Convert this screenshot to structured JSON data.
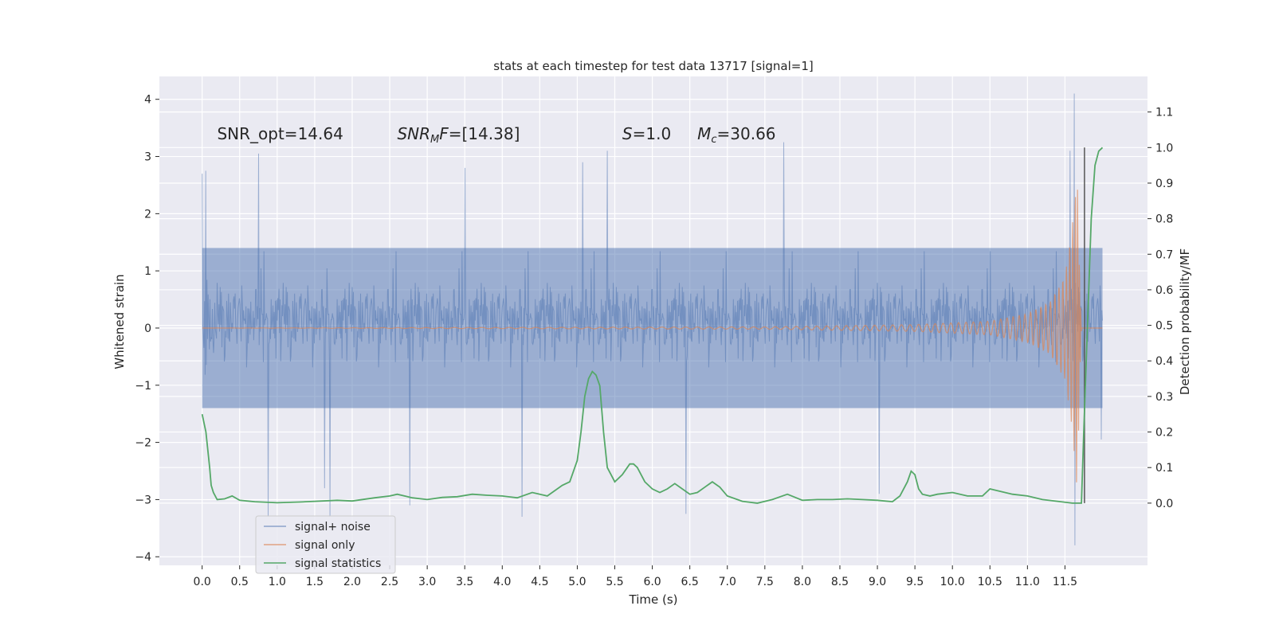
{
  "chart_data": {
    "type": "line",
    "title": "stats at each timestep for test data 13717 [signal=1]",
    "xlabel": "Time (s)",
    "ylabel": "Whitened strain",
    "y2label": "Detection probability/MF",
    "xlim": [
      -0.57,
      12.6
    ],
    "ylim": [
      -4.15,
      4.4
    ],
    "y2lim": [
      -0.175,
      1.2
    ],
    "xticks": [
      0.0,
      0.5,
      1.0,
      1.5,
      2.0,
      2.5,
      3.0,
      3.5,
      4.0,
      4.5,
      5.0,
      5.5,
      6.0,
      6.5,
      7.0,
      7.5,
      8.0,
      8.5,
      9.0,
      9.5,
      10.0,
      10.5,
      11.0,
      11.5
    ],
    "xtick_labels": [
      "0.0",
      "0.5",
      "1.0",
      "1.5",
      "2.0",
      "2.5",
      "3.0",
      "3.5",
      "4.0",
      "4.5",
      "5.0",
      "5.5",
      "6.0",
      "6.5",
      "7.0",
      "7.5",
      "8.0",
      "8.5",
      "9.0",
      "9.5",
      "10.0",
      "10.5",
      "11.0",
      "11.5"
    ],
    "yticks": [
      -4,
      -3,
      -2,
      -1,
      0,
      1,
      2,
      3,
      4
    ],
    "ytick_labels": [
      "−4",
      "−3",
      "−2",
      "−1",
      "0",
      "1",
      "2",
      "3",
      "4"
    ],
    "y2ticks": [
      0.0,
      0.1,
      0.2,
      0.3,
      0.4,
      0.5,
      0.6,
      0.7,
      0.8,
      0.9,
      1.0,
      1.1
    ],
    "y2tick_labels": [
      "0.0",
      "0.1",
      "0.2",
      "0.3",
      "0.4",
      "0.5",
      "0.6",
      "0.7",
      "0.8",
      "0.9",
      "1.0",
      "1.1"
    ],
    "grid": true,
    "legend_position": "lower-left",
    "annotations": [
      {
        "id": "snr-opt",
        "x": 0.2,
        "y": 3.3,
        "parts": [
          {
            "t": "SNR_opt=14.64",
            "s": "normal"
          }
        ]
      },
      {
        "id": "snr-mf",
        "x": 2.6,
        "y": 3.3,
        "parts": [
          {
            "t": "SNR",
            "s": "italic"
          },
          {
            "t": "M",
            "s": "italic-sub"
          },
          {
            "t": "F",
            "s": "italic"
          },
          {
            "t": "=[14.38]",
            "s": "normal"
          }
        ]
      },
      {
        "id": "s-value",
        "x": 5.6,
        "y": 3.3,
        "parts": [
          {
            "t": "S",
            "s": "italic"
          },
          {
            "t": "=1.0",
            "s": "normal"
          }
        ]
      },
      {
        "id": "mc-value",
        "x": 6.6,
        "y": 3.3,
        "parts": [
          {
            "t": "M",
            "s": "italic"
          },
          {
            "t": "c",
            "s": "italic-sub"
          },
          {
            "t": "=30.66",
            "s": "normal"
          }
        ]
      }
    ],
    "series": [
      {
        "name": "signal+ noise",
        "color": "#4c72b0",
        "axis": "left",
        "description_range": {
          "x": [
            0.0,
            12.0
          ],
          "typical_band": [
            -1.4,
            1.4
          ],
          "max": 4.1,
          "min": -3.8
        },
        "peaks": [
          {
            "x": 0.0,
            "y": 2.7
          },
          {
            "x": 0.05,
            "y": 2.75
          },
          {
            "x": 0.75,
            "y": 3.05
          },
          {
            "x": 0.88,
            "y": -3.3
          },
          {
            "x": 1.63,
            "y": -2.8
          },
          {
            "x": 1.7,
            "y": -3.3
          },
          {
            "x": 2.77,
            "y": -3.1
          },
          {
            "x": 3.5,
            "y": 2.8
          },
          {
            "x": 4.26,
            "y": -3.3
          },
          {
            "x": 5.07,
            "y": 2.9
          },
          {
            "x": 5.4,
            "y": 3.1
          },
          {
            "x": 6.45,
            "y": -3.25
          },
          {
            "x": 7.75,
            "y": 3.25
          },
          {
            "x": 9.02,
            "y": -2.9
          },
          {
            "x": 11.57,
            "y": 3.1
          },
          {
            "x": 11.62,
            "y": 4.1
          },
          {
            "x": 11.63,
            "y": -3.8
          },
          {
            "x": 11.98,
            "y": 2.2
          },
          {
            "x": 11.98,
            "y": -1.95
          }
        ]
      },
      {
        "name": "signal only",
        "color": "#dd8452",
        "axis": "left",
        "chirp_amplitude": [
          [
            0.0,
            0.0
          ],
          [
            7.5,
            0.02
          ],
          [
            8.5,
            0.04
          ],
          [
            9.5,
            0.06
          ],
          [
            10.5,
            0.12
          ],
          [
            11.0,
            0.25
          ],
          [
            11.3,
            0.45
          ],
          [
            11.5,
            0.9
          ],
          [
            11.6,
            1.8
          ],
          [
            11.66,
            2.8
          ],
          [
            11.72,
            0.0
          ],
          [
            12.0,
            0.0
          ]
        ]
      },
      {
        "name": "signal statistics",
        "color": "#55a868",
        "axis": "right",
        "x": [
          0.0,
          0.05,
          0.1,
          0.12,
          0.15,
          0.2,
          0.3,
          0.4,
          0.5,
          0.7,
          1.0,
          1.3,
          1.5,
          1.8,
          2.0,
          2.3,
          2.5,
          2.6,
          2.8,
          3.0,
          3.2,
          3.4,
          3.6,
          3.8,
          4.0,
          4.2,
          4.4,
          4.6,
          4.8,
          4.9,
          5.0,
          5.05,
          5.1,
          5.15,
          5.2,
          5.25,
          5.3,
          5.35,
          5.4,
          5.5,
          5.6,
          5.7,
          5.75,
          5.8,
          5.9,
          6.0,
          6.1,
          6.2,
          6.3,
          6.4,
          6.5,
          6.6,
          6.7,
          6.8,
          6.9,
          7.0,
          7.2,
          7.4,
          7.6,
          7.8,
          8.0,
          8.2,
          8.4,
          8.6,
          8.8,
          9.0,
          9.2,
          9.3,
          9.4,
          9.45,
          9.5,
          9.55,
          9.6,
          9.7,
          9.8,
          10.0,
          10.2,
          10.4,
          10.5,
          10.6,
          10.8,
          11.0,
          11.2,
          11.4,
          11.6,
          11.7,
          11.72,
          11.75,
          11.8,
          11.85,
          11.9,
          11.95,
          12.0
        ],
        "values": [
          0.25,
          0.2,
          0.1,
          0.05,
          0.03,
          0.01,
          0.012,
          0.02,
          0.008,
          0.004,
          0.001,
          0.003,
          0.005,
          0.008,
          0.006,
          0.015,
          0.02,
          0.025,
          0.015,
          0.01,
          0.016,
          0.018,
          0.025,
          0.022,
          0.02,
          0.015,
          0.03,
          0.02,
          0.05,
          0.06,
          0.12,
          0.2,
          0.3,
          0.35,
          0.37,
          0.36,
          0.33,
          0.2,
          0.1,
          0.06,
          0.08,
          0.11,
          0.11,
          0.1,
          0.06,
          0.04,
          0.03,
          0.04,
          0.055,
          0.04,
          0.025,
          0.03,
          0.045,
          0.06,
          0.045,
          0.02,
          0.005,
          0.0,
          0.01,
          0.025,
          0.008,
          0.01,
          0.01,
          0.012,
          0.01,
          0.008,
          0.004,
          0.02,
          0.06,
          0.09,
          0.08,
          0.04,
          0.025,
          0.02,
          0.025,
          0.03,
          0.02,
          0.02,
          0.04,
          0.035,
          0.025,
          0.02,
          0.01,
          0.005,
          0.0,
          0.0,
          0.0,
          0.2,
          0.5,
          0.8,
          0.95,
          0.99,
          1.0
        ]
      }
    ],
    "vertical_line": {
      "x": 11.76,
      "y2_range": [
        0.0,
        1.0
      ],
      "color": "#555555"
    }
  }
}
